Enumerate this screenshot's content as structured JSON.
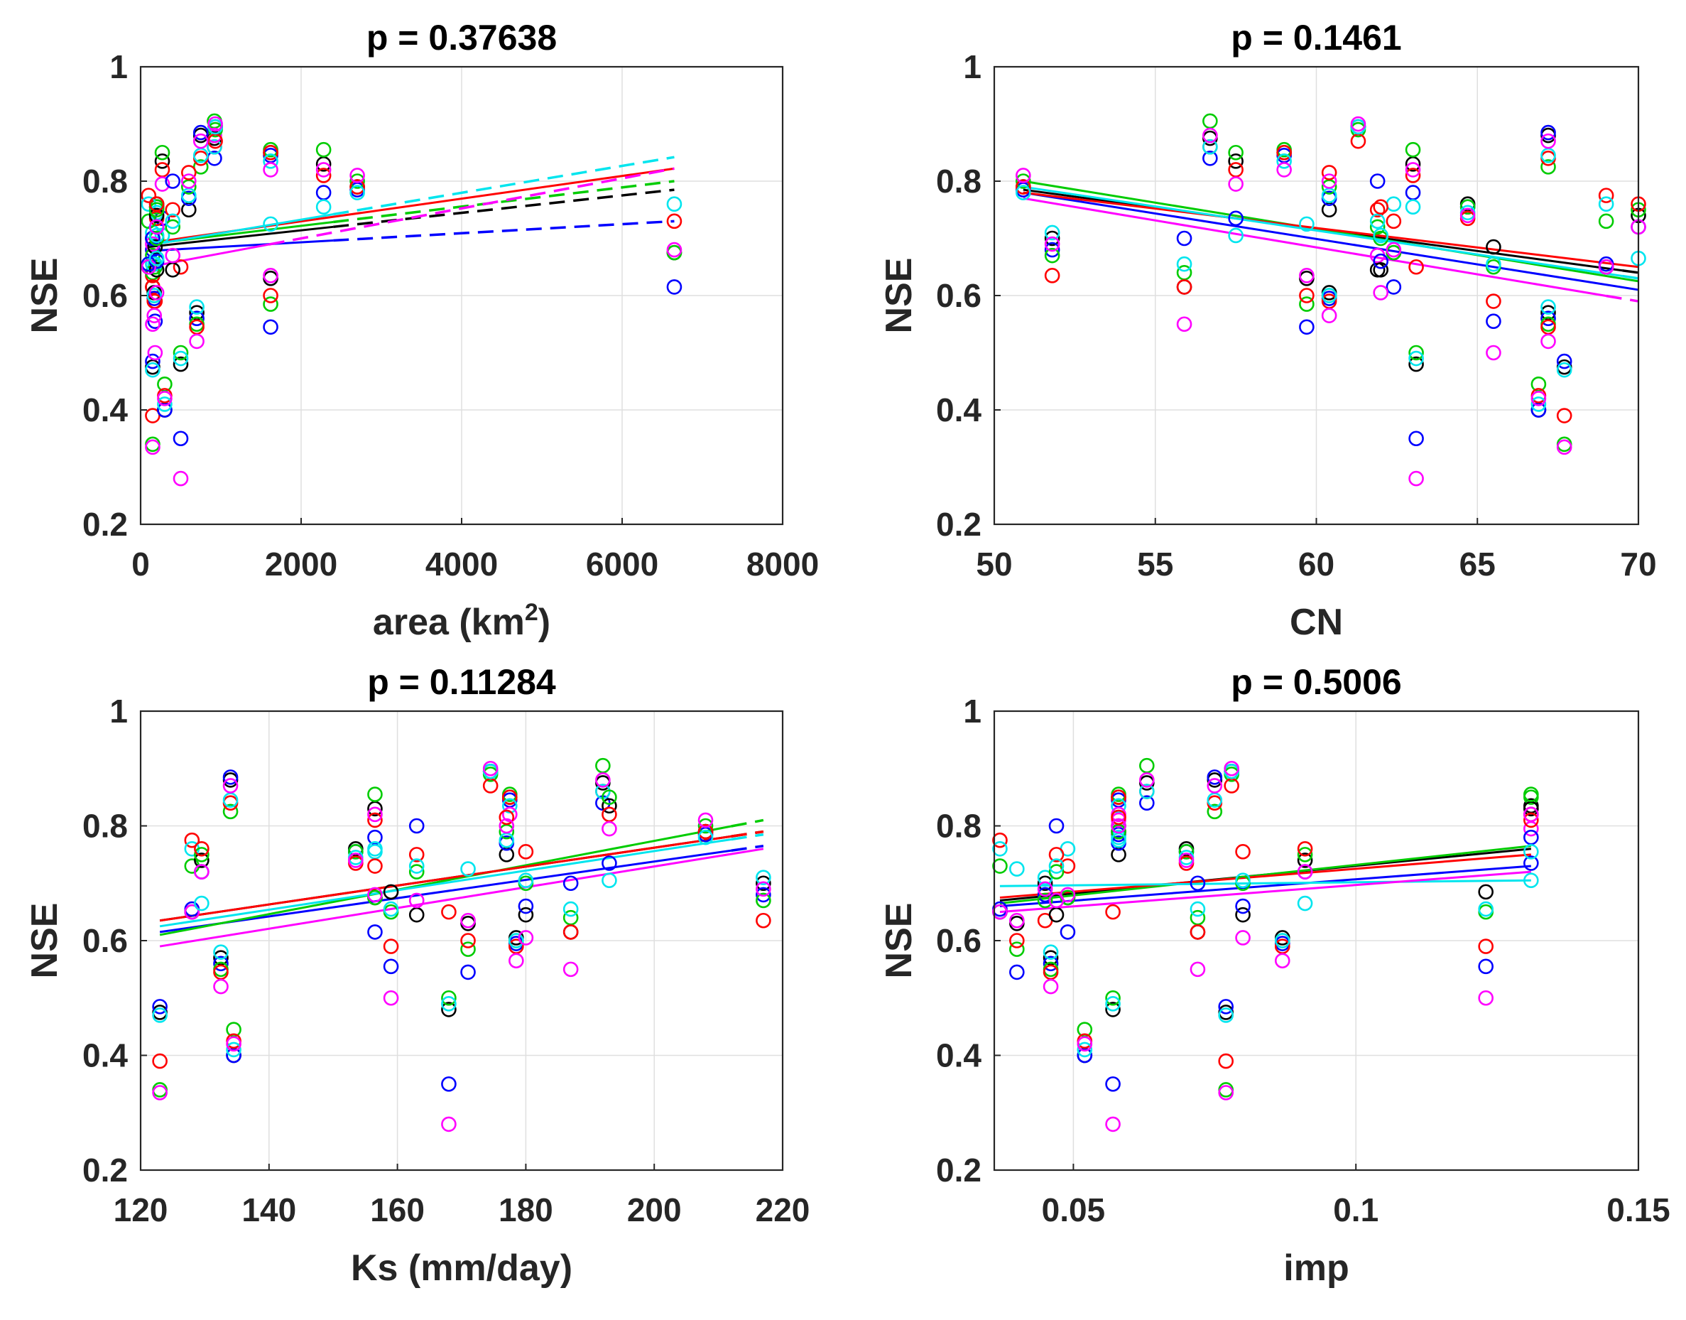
{
  "chart_data": {
    "type": "scatter",
    "layout": "2x2 subplots",
    "series": [
      {
        "id": "k",
        "color": "#000000"
      },
      {
        "id": "b",
        "color": "#0000ff"
      },
      {
        "id": "g",
        "color": "#00cc00"
      },
      {
        "id": "r",
        "color": "#ff0000"
      },
      {
        "id": "c",
        "color": "#00e5ee"
      },
      {
        "id": "m",
        "color": "#ff00ff"
      }
    ],
    "nse_order": [
      "k",
      "b",
      "g",
      "r",
      "c",
      "m"
    ],
    "catchments": [
      {
        "area": 500,
        "CN": 63.1,
        "Ks": 168,
        "imp": 0.057,
        "nse": [
          0.48,
          0.35,
          0.5,
          0.65,
          0.49,
          0.28
        ]
      },
      {
        "area": 150,
        "CN": 67.7,
        "Ks": 123,
        "imp": 0.077,
        "nse": [
          0.475,
          0.485,
          0.34,
          0.39,
          0.47,
          0.335
        ]
      },
      {
        "area": 300,
        "CN": 66.9,
        "Ks": 134.5,
        "imp": 0.052,
        "nse": [
          0.4,
          0.4,
          0.445,
          0.425,
          0.41,
          0.42
        ]
      },
      {
        "area": 920,
        "CN": 56.7,
        "Ks": 192,
        "imp": 0.063,
        "nse": [
          0.875,
          0.84,
          0.905,
          0.86,
          0.86,
          0.88
        ]
      },
      {
        "area": 930,
        "CN": 61.3,
        "Ks": 174.5,
        "imp": 0.078,
        "nse": [
          0.895,
          0.895,
          0.89,
          0.87,
          0.895,
          0.9
        ]
      },
      {
        "area": 750,
        "CN": 67.2,
        "Ks": 134,
        "imp": 0.075,
        "nse": [
          0.88,
          0.885,
          0.825,
          0.84,
          0.845,
          0.87
        ]
      },
      {
        "area": 700,
        "CN": 67.2,
        "Ks": 132.5,
        "imp": 0.046,
        "nse": [
          0.57,
          0.56,
          0.55,
          0.545,
          0.58,
          0.52
        ]
      },
      {
        "area": 270,
        "CN": 57.5,
        "Ks": 193,
        "imp": 0.131,
        "nse": [
          0.835,
          0.735,
          0.85,
          0.82,
          0.705,
          0.795
        ]
      },
      {
        "area": 1620,
        "CN": 59.0,
        "Ks": 177.5,
        "imp": 0.058,
        "nse": [
          0.85,
          0.845,
          0.855,
          0.85,
          0.835,
          0.82
        ]
      },
      {
        "area": 2280,
        "CN": 63.0,
        "Ks": 156.5,
        "imp": 0.131,
        "nse": [
          0.83,
          0.78,
          0.855,
          0.81,
          0.755,
          0.82
        ]
      },
      {
        "area": 1620,
        "CN": 59.7,
        "Ks": 171,
        "imp": 0.04,
        "nse": [
          0.63,
          0.545,
          0.585,
          0.6,
          0.725,
          0.635
        ]
      },
      {
        "area": 150,
        "CN": 51.8,
        "Ks": 217,
        "imp": 0.045,
        "nse": [
          0.7,
          0.68,
          0.67,
          0.635,
          0.71,
          0.69
        ]
      },
      {
        "area": 6650,
        "CN": 62.4,
        "Ks": 156.5,
        "imp": 0.049,
        "nse": [
          0.675,
          0.615,
          0.675,
          0.73,
          0.76,
          0.68
        ]
      },
      {
        "area": 180,
        "CN": 65.5,
        "Ks": 159,
        "imp": 0.123,
        "nse": [
          0.685,
          0.555,
          0.65,
          0.59,
          0.655,
          0.5
        ]
      },
      {
        "area": 2700,
        "CN": 50.9,
        "Ks": 208,
        "imp": 0.058,
        "nse": [
          0.79,
          0.785,
          0.8,
          0.79,
          0.78,
          0.81
        ]
      },
      {
        "area": 150,
        "CN": 55.9,
        "Ks": 187,
        "imp": 0.072,
        "nse": [
          0.615,
          0.7,
          0.64,
          0.615,
          0.655,
          0.55
        ]
      },
      {
        "area": 600,
        "CN": 60.4,
        "Ks": 177,
        "imp": 0.058,
        "nse": [
          0.75,
          0.77,
          0.79,
          0.815,
          0.775,
          0.8
        ]
      },
      {
        "area": 170,
        "CN": 60.4,
        "Ks": 178.5,
        "imp": 0.087,
        "nse": [
          0.605,
          0.595,
          0.6,
          0.59,
          0.6,
          0.565
        ]
      },
      {
        "area": 400,
        "CN": 61.9,
        "Ks": 163,
        "imp": 0.047,
        "nse": [
          0.645,
          0.8,
          0.72,
          0.75,
          0.73,
          0.67
        ]
      },
      {
        "area": 200,
        "CN": 62.0,
        "Ks": 180,
        "imp": 0.08,
        "nse": [
          0.645,
          0.66,
          0.7,
          0.755,
          0.705,
          0.605
        ]
      },
      {
        "area": 200,
        "CN": 64.7,
        "Ks": 153.5,
        "imp": 0.07,
        "nse": [
          0.76,
          0.755,
          0.755,
          0.735,
          0.745,
          0.74
        ]
      },
      {
        "area": 100,
        "CN": 69.0,
        "Ks": 128,
        "imp": 0.037,
        "nse": [
          0.65,
          0.655,
          0.73,
          0.775,
          0.76,
          0.65
        ]
      },
      {
        "area": 200,
        "CN": 70.0,
        "Ks": 129.5,
        "imp": 0.091,
        "nse": [
          0.74,
          0.72,
          0.75,
          0.76,
          0.665,
          0.72
        ]
      }
    ],
    "panels": [
      {
        "title": "p = 0.37638",
        "xkey": "area",
        "xlabel": [
          "area (km",
          "2",
          ")"
        ],
        "ylabel": "NSE",
        "xlim": [
          0,
          8000
        ],
        "ylim": [
          0.2,
          1
        ],
        "xticks": [
          0,
          2000,
          4000,
          6000,
          8000
        ],
        "xtick_labels": [
          "0",
          "2000",
          "4000",
          "6000",
          "8000"
        ],
        "yticks": [
          0.2,
          0.4,
          0.6,
          0.8,
          1
        ],
        "ytick_labels": [
          "0.2",
          "0.4",
          "0.6",
          "0.8",
          "1"
        ],
        "grid": true,
        "fits": [
          {
            "s": "k",
            "x": [
              100,
              6650
            ],
            "y": [
              0.685,
              0.785
            ],
            "solid_to": 2400
          },
          {
            "s": "b",
            "x": [
              100,
              6650
            ],
            "y": [
              0.678,
              0.73
            ],
            "solid_to": 2400
          },
          {
            "s": "g",
            "x": [
              100,
              6650
            ],
            "y": [
              0.69,
              0.8
            ],
            "solid_to": 2400
          },
          {
            "s": "r",
            "x": [
              100,
              6650
            ],
            "y": [
              0.692,
              0.822
            ],
            "solid_to": 6650
          },
          {
            "s": "c",
            "x": [
              100,
              6650
            ],
            "y": [
              0.688,
              0.842
            ],
            "solid_to": 2400
          },
          {
            "s": "m",
            "x": [
              100,
              6650
            ],
            "y": [
              0.65,
              0.822
            ],
            "solid_to": 1600
          }
        ]
      },
      {
        "title": "p = 0.1461",
        "xkey": "CN",
        "xlabel": [
          "CN"
        ],
        "ylabel": "NSE",
        "xlim": [
          50,
          70
        ],
        "ylim": [
          0.2,
          1
        ],
        "xticks": [
          50,
          55,
          60,
          65,
          70
        ],
        "xtick_labels": [
          "50",
          "55",
          "60",
          "65",
          "70"
        ],
        "yticks": [
          0.2,
          0.4,
          0.6,
          0.8,
          1
        ],
        "ytick_labels": [
          "0.2",
          "0.4",
          "0.6",
          "0.8",
          "1"
        ],
        "grid": true,
        "fits": [
          {
            "s": "k",
            "x": [
              50.9,
              70
            ],
            "y": [
              0.785,
              0.64
            ],
            "solid_to": 69.5
          },
          {
            "s": "b",
            "x": [
              50.9,
              70
            ],
            "y": [
              0.78,
              0.61
            ],
            "solid_to": 70
          },
          {
            "s": "g",
            "x": [
              50.9,
              70
            ],
            "y": [
              0.8,
              0.625
            ],
            "solid_to": 70
          },
          {
            "s": "r",
            "x": [
              50.9,
              70
            ],
            "y": [
              0.78,
              0.65
            ],
            "solid_to": 70
          },
          {
            "s": "c",
            "x": [
              50.9,
              70
            ],
            "y": [
              0.79,
              0.63
            ],
            "solid_to": 69.5
          },
          {
            "s": "m",
            "x": [
              50.9,
              70
            ],
            "y": [
              0.77,
              0.59
            ],
            "solid_to": 69
          }
        ]
      },
      {
        "title": "p = 0.11284",
        "xkey": "Ks",
        "xlabel": [
          "Ks (mm/day)"
        ],
        "ylabel": "NSE",
        "xlim": [
          120,
          220
        ],
        "ylim": [
          0.2,
          1
        ],
        "xticks": [
          120,
          140,
          160,
          180,
          200,
          220
        ],
        "xtick_labels": [
          "120",
          "140",
          "160",
          "180",
          "200",
          "220"
        ],
        "yticks": [
          0.2,
          0.4,
          0.6,
          0.8,
          1
        ],
        "ytick_labels": [
          "0.2",
          "0.4",
          "0.6",
          "0.8",
          "1"
        ],
        "grid": true,
        "fits": [
          {
            "s": "k",
            "x": [
              123,
              217
            ],
            "y": [
              0.635,
              0.79
            ],
            "solid_to": 212
          },
          {
            "s": "b",
            "x": [
              123,
              217
            ],
            "y": [
              0.615,
              0.765
            ],
            "solid_to": 212
          },
          {
            "s": "g",
            "x": [
              123,
              217
            ],
            "y": [
              0.61,
              0.81
            ],
            "solid_to": 212
          },
          {
            "s": "r",
            "x": [
              123,
              217
            ],
            "y": [
              0.635,
              0.79
            ],
            "solid_to": 212
          },
          {
            "s": "c",
            "x": [
              123,
              217
            ],
            "y": [
              0.625,
              0.785
            ],
            "solid_to": 212
          },
          {
            "s": "m",
            "x": [
              123,
              217
            ],
            "y": [
              0.59,
              0.76
            ],
            "solid_to": 217
          }
        ]
      },
      {
        "title": "p = 0.5006",
        "xkey": "imp",
        "xlabel": [
          "imp"
        ],
        "ylabel": "NSE",
        "xlim": [
          0.036,
          0.15
        ],
        "ylim": [
          0.2,
          1
        ],
        "xticks": [
          0.05,
          0.1,
          0.15
        ],
        "xtick_labels": [
          "0.05",
          "0.1",
          "0.15"
        ],
        "yticks": [
          0.2,
          0.4,
          0.6,
          0.8,
          1
        ],
        "ytick_labels": [
          "0.2",
          "0.4",
          "0.6",
          "0.8",
          "1"
        ],
        "grid": true,
        "fits": [
          {
            "s": "k",
            "x": [
              0.037,
              0.131
            ],
            "y": [
              0.67,
              0.76
            ],
            "solid_to": 0.131
          },
          {
            "s": "b",
            "x": [
              0.037,
              0.131
            ],
            "y": [
              0.66,
              0.73
            ],
            "solid_to": 0.131
          },
          {
            "s": "g",
            "x": [
              0.037,
              0.131
            ],
            "y": [
              0.665,
              0.765
            ],
            "solid_to": 0.131
          },
          {
            "s": "r",
            "x": [
              0.037,
              0.131
            ],
            "y": [
              0.675,
              0.75
            ],
            "solid_to": 0.131
          },
          {
            "s": "c",
            "x": [
              0.037,
              0.131
            ],
            "y": [
              0.695,
              0.705
            ],
            "solid_to": 0.131
          },
          {
            "s": "m",
            "x": [
              0.037,
              0.131
            ],
            "y": [
              0.65,
              0.72
            ],
            "solid_to": 0.131
          }
        ]
      }
    ]
  }
}
